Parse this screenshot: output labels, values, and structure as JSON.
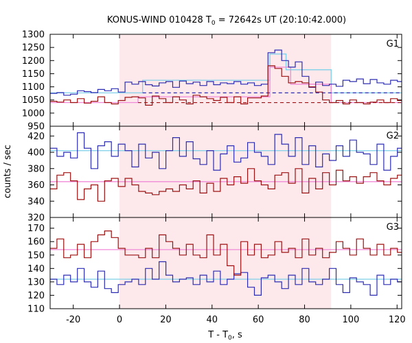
{
  "chart_data": {
    "type": "line",
    "title": "KONUS-WIND 010428 T",
    "title_sub": "0",
    "title_rest": " = 72642s UT (20:10:42.000)",
    "xlabel": "T - T",
    "xlabel_sub": "0",
    "xlabel_rest": ", s",
    "ylabel": "counts / sec",
    "xlim": [
      -30,
      122
    ],
    "xticks": [
      -20,
      0,
      20,
      40,
      60,
      80,
      100,
      120
    ],
    "shaded_interval": [
      0,
      91.5
    ],
    "colors": {
      "blue": "#2b2bb2",
      "red": "#9b1010",
      "cyan": "#7fd0e8",
      "pink": "#f08ad8",
      "shade": "#fde8ec"
    },
    "panels": [
      {
        "label": "G1",
        "ylim": [
          950,
          1300
        ],
        "yticks": [
          950,
          1000,
          1050,
          1100,
          1150,
          1200,
          1250,
          1300
        ],
        "step_start": -30,
        "step_width": 2.944,
        "series": [
          {
            "name": "",
            "color": "blue",
            "values": [
              1075,
              1078,
              1068,
              1072,
              1085,
              1082,
              1078,
              1090,
              1085,
              1093,
              1080,
              1118,
              1110,
              1120,
              1108,
              1103,
              1115,
              1120,
              1098,
              1122,
              1112,
              1118,
              1105,
              1120,
              1108,
              1115,
              1112,
              1120,
              1110,
              1115,
              1105,
              1110,
              1230,
              1240,
              1200,
              1175,
              1195,
              1140,
              1098,
              1118,
              1105,
              1110,
              1102,
              1125,
              1120,
              1130,
              1112,
              1128,
              1115,
              1110,
              1125,
              1120
            ]
          },
          {
            "name": "",
            "color": "red",
            "values": [
              1045,
              1042,
              1050,
              1040,
              1055,
              1038,
              1045,
              1062,
              1040,
              1035,
              1048,
              1060,
              1062,
              1058,
              1030,
              1065,
              1055,
              1040,
              1062,
              1050,
              1035,
              1068,
              1062,
              1055,
              1048,
              1060,
              1040,
              1062,
              1035,
              1058,
              1058,
              1065,
              1180,
              1170,
              1140,
              1115,
              1120,
              1115,
              1100,
              1080,
              1050,
              1040,
              1048,
              1035,
              1050,
              1040,
              1035,
              1042,
              1050,
              1040,
              1055,
              1048
            ]
          },
          {
            "name": "",
            "color": "cyan",
            "step_x": [
              -30,
              10,
              10,
              65,
              65,
              72,
              72,
              91.5,
              91.5
            ],
            "step_y": [
              1077,
              1077,
              1125,
              1125,
              1225,
              1225,
              1165,
              1165,
              1077
            ],
            "end_x": 122
          },
          {
            "name": "",
            "color": "pink",
            "step_x": [
              -30,
              8,
              8,
              65,
              65,
              74,
              74,
              91.5,
              91.5
            ],
            "step_y": [
              1040,
              1040,
              1062,
              1062,
              1175,
              1175,
              1110,
              1110,
              1040
            ],
            "end_x": 122
          }
        ],
        "dashed": [
          {
            "color": "blue",
            "y": 1077,
            "x": [
              10,
              122
            ]
          },
          {
            "color": "red",
            "y": 1040,
            "x": [
              8,
              122
            ]
          }
        ]
      },
      {
        "label": "G2",
        "ylim": [
          320,
          432
        ],
        "yticks": [
          320,
          340,
          360,
          380,
          400,
          420
        ],
        "step_start": -30,
        "step_width": 2.944,
        "series": [
          {
            "name": "",
            "color": "blue",
            "values": [
              405,
              395,
              400,
              393,
              424,
              405,
              380,
              408,
              413,
              395,
              410,
              402,
              382,
              410,
              393,
              400,
              380,
              402,
              418,
              395,
              413,
              392,
              385,
              402,
              378,
              398,
              408,
              388,
              393,
              412,
              400,
              395,
              385,
              422,
              410,
              395,
              418,
              385,
              408,
              382,
              398,
              390,
              408,
              395,
              415,
              400,
              398,
              385,
              410,
              378,
              395,
              405
            ]
          },
          {
            "name": "",
            "color": "red",
            "values": [
              355,
              372,
              375,
              365,
              342,
              355,
              360,
              340,
              365,
              368,
              358,
              368,
              360,
              352,
              350,
              348,
              352,
              355,
              352,
              360,
              355,
              365,
              350,
              362,
              352,
              368,
              360,
              370,
              362,
              380,
              365,
              360,
              355,
              372,
              375,
              362,
              380,
              350,
              368,
              355,
              375,
              360,
              378,
              365,
              370,
              362,
              370,
              375,
              365,
              360,
              368,
              372
            ]
          },
          {
            "name": "",
            "color": "cyan",
            "step_x": [
              -30,
              122
            ],
            "step_y": [
              402,
              402
            ],
            "end_x": 122
          },
          {
            "name": "",
            "color": "pink",
            "step_x": [
              -30,
              122
            ],
            "step_y": [
              364,
              364
            ],
            "end_x": 122
          }
        ],
        "dashed": []
      },
      {
        "label": "G3",
        "ylim": [
          110,
          178
        ],
        "yticks": [
          110,
          120,
          130,
          140,
          150,
          160,
          170
        ],
        "step_start": -30,
        "step_width": 2.944,
        "series": [
          {
            "name": "",
            "color": "blue",
            "values": [
              132,
              128,
              135,
              130,
              140,
              130,
              126,
              138,
              125,
              122,
              128,
              130,
              132,
              128,
              140,
              132,
              145,
              135,
              130,
              132,
              133,
              128,
              135,
              130,
              138,
              128,
              132,
              136,
              137,
              126,
              120,
              133,
              135,
              130,
              125,
              135,
              128,
              140,
              130,
              128,
              132,
              140,
              128,
              122,
              133,
              130,
              128,
              120,
              135,
              128,
              132,
              130
            ]
          },
          {
            "name": "",
            "color": "red",
            "values": [
              155,
              162,
              148,
              150,
              158,
              148,
              160,
              165,
              168,
              163,
              155,
              150,
              150,
              148,
              155,
              148,
              165,
              160,
              155,
              150,
              158,
              150,
              148,
              165,
              150,
              158,
              142,
              135,
              160,
              150,
              158,
              148,
              150,
              160,
              152,
              155,
              148,
              162,
              150,
              155,
              148,
              152,
              160,
              155,
              150,
              162,
              155,
              150,
              158,
              150,
              155,
              152
            ]
          },
          {
            "name": "",
            "color": "cyan",
            "step_x": [
              -30,
              122
            ],
            "step_y": [
              132,
              132
            ],
            "end_x": 122
          },
          {
            "name": "",
            "color": "pink",
            "step_x": [
              -30,
              122
            ],
            "step_y": [
              154,
              154
            ],
            "end_x": 122
          }
        ],
        "dashed": []
      }
    ]
  }
}
